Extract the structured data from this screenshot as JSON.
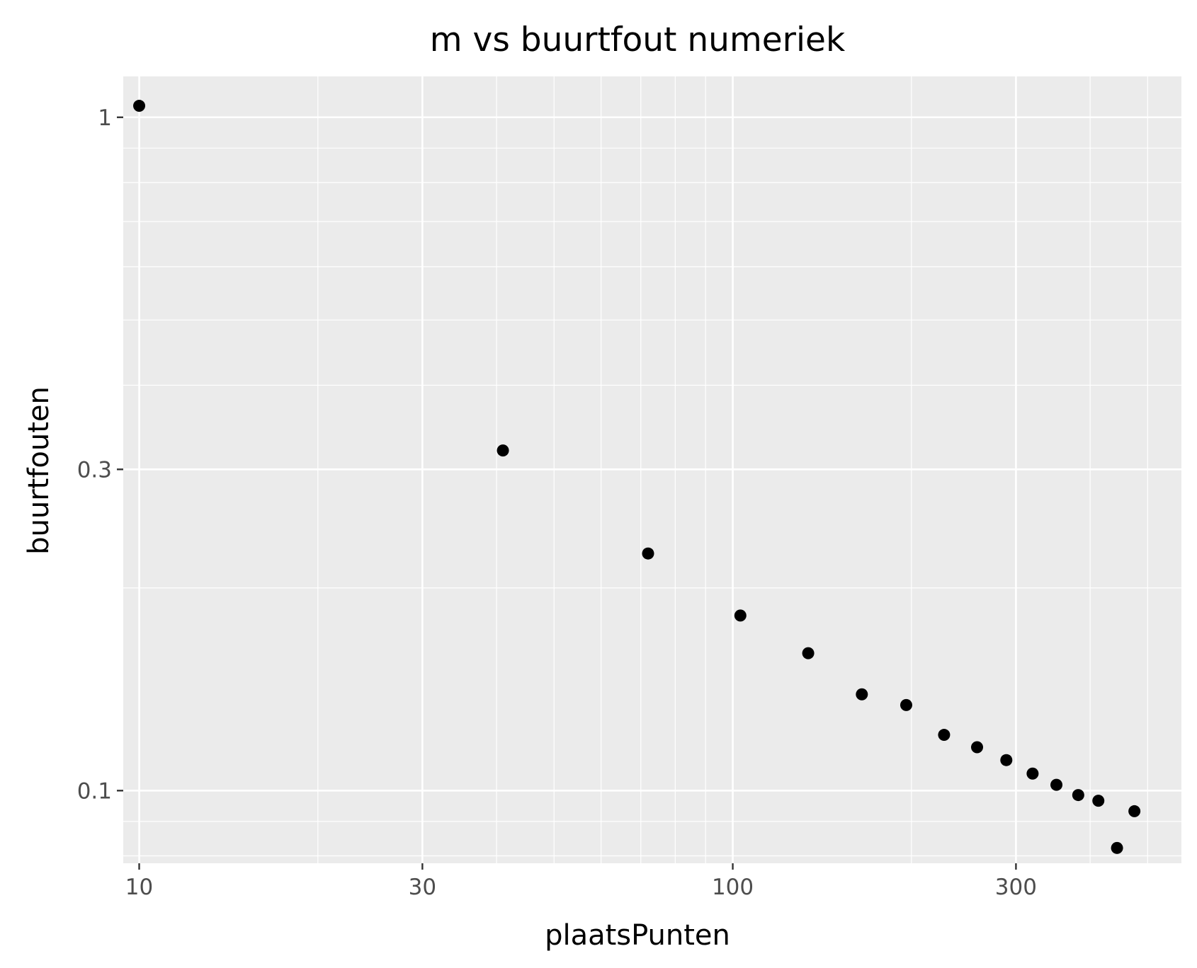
{
  "chart_data": {
    "type": "scatter",
    "title": "m vs buurtfout numeriek",
    "xlabel": "plaatsPunten",
    "ylabel": "buurtfouten",
    "x_scale": "log10",
    "y_scale": "log10",
    "xlim": [
      9.4,
      570
    ],
    "ylim": [
      0.078,
      1.15
    ],
    "x_ticks": [
      {
        "value": 10,
        "label": "10"
      },
      {
        "value": 30,
        "label": "30"
      },
      {
        "value": 100,
        "label": "100"
      },
      {
        "value": 300,
        "label": "300"
      }
    ],
    "y_ticks": [
      {
        "value": 0.1,
        "label": "0.1"
      },
      {
        "value": 0.3,
        "label": "0.3"
      },
      {
        "value": 1,
        "label": "1"
      }
    ],
    "grid": true,
    "points": [
      {
        "x": 10,
        "y": 1.04
      },
      {
        "x": 41,
        "y": 0.32
      },
      {
        "x": 72,
        "y": 0.225
      },
      {
        "x": 103,
        "y": 0.182
      },
      {
        "x": 134,
        "y": 0.16
      },
      {
        "x": 165,
        "y": 0.139
      },
      {
        "x": 196,
        "y": 0.134
      },
      {
        "x": 227,
        "y": 0.121
      },
      {
        "x": 258,
        "y": 0.116
      },
      {
        "x": 289,
        "y": 0.111
      },
      {
        "x": 320,
        "y": 0.106
      },
      {
        "x": 351,
        "y": 0.102
      },
      {
        "x": 382,
        "y": 0.0985
      },
      {
        "x": 413,
        "y": 0.0966
      },
      {
        "x": 444,
        "y": 0.0822
      },
      {
        "x": 475,
        "y": 0.0932
      }
    ],
    "colors": {
      "panel": "#ebebeb",
      "grid": "#ffffff",
      "point": "#000000",
      "tick_text": "#4d4d4d",
      "tick_mark": "#333333"
    }
  }
}
